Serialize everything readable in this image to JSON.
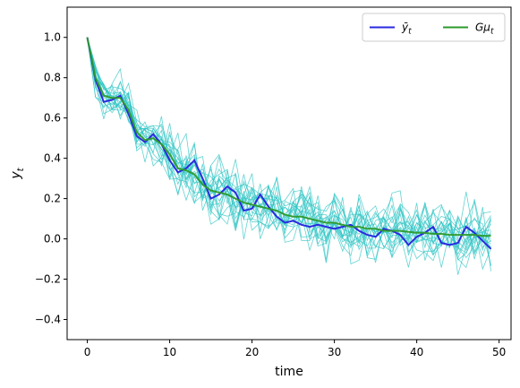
{
  "chart_data": {
    "type": "line",
    "xlabel": "time",
    "ylabel": "y",
    "ylabel_subscript": "t",
    "xlim": [
      -2.45,
      51.45
    ],
    "ylim": [
      -0.5,
      1.15
    ],
    "x_ticks": [
      0,
      10,
      20,
      30,
      40,
      50
    ],
    "y_ticks": [
      -0.4,
      -0.2,
      0.0,
      0.2,
      0.4,
      0.6,
      0.8,
      1.0
    ],
    "grid": false,
    "legend_placement": "top-right",
    "x": [
      0,
      1,
      2,
      3,
      4,
      5,
      6,
      7,
      8,
      9,
      10,
      11,
      12,
      13,
      14,
      15,
      16,
      17,
      18,
      19,
      20,
      21,
      22,
      23,
      24,
      25,
      26,
      27,
      28,
      29,
      30,
      31,
      32,
      33,
      34,
      35,
      36,
      37,
      38,
      39,
      40,
      41,
      42,
      43,
      44,
      45,
      46,
      47,
      48,
      49
    ],
    "series": [
      {
        "name": "ȳ",
        "name_subscript": "t",
        "color": "#2a2ae0",
        "values": [
          1.0,
          0.79,
          0.68,
          0.69,
          0.71,
          0.62,
          0.51,
          0.48,
          0.52,
          0.47,
          0.39,
          0.33,
          0.35,
          0.39,
          0.3,
          0.2,
          0.22,
          0.26,
          0.23,
          0.14,
          0.15,
          0.22,
          0.16,
          0.11,
          0.08,
          0.09,
          0.07,
          0.06,
          0.07,
          0.06,
          0.05,
          0.06,
          0.07,
          0.04,
          0.02,
          0.01,
          0.05,
          0.04,
          0.02,
          -0.03,
          0.01,
          0.03,
          0.06,
          -0.02,
          -0.03,
          -0.02,
          0.06,
          0.03,
          -0.01,
          -0.05
        ]
      },
      {
        "name": "Gμ",
        "name_subscript": "t",
        "color": "#2c9a2c",
        "values": [
          1.0,
          0.8,
          0.71,
          0.7,
          0.7,
          0.64,
          0.53,
          0.49,
          0.5,
          0.47,
          0.42,
          0.35,
          0.34,
          0.32,
          0.27,
          0.24,
          0.23,
          0.22,
          0.2,
          0.18,
          0.17,
          0.16,
          0.15,
          0.14,
          0.12,
          0.11,
          0.11,
          0.1,
          0.09,
          0.08,
          0.08,
          0.07,
          0.06,
          0.06,
          0.05,
          0.05,
          0.04,
          0.04,
          0.04,
          0.035,
          0.03,
          0.03,
          0.025,
          0.025,
          0.02,
          0.02,
          0.02,
          0.02,
          0.015,
          0.015
        ]
      }
    ],
    "sample_paths": {
      "color": "#2fc4c4",
      "count": 20
    }
  }
}
